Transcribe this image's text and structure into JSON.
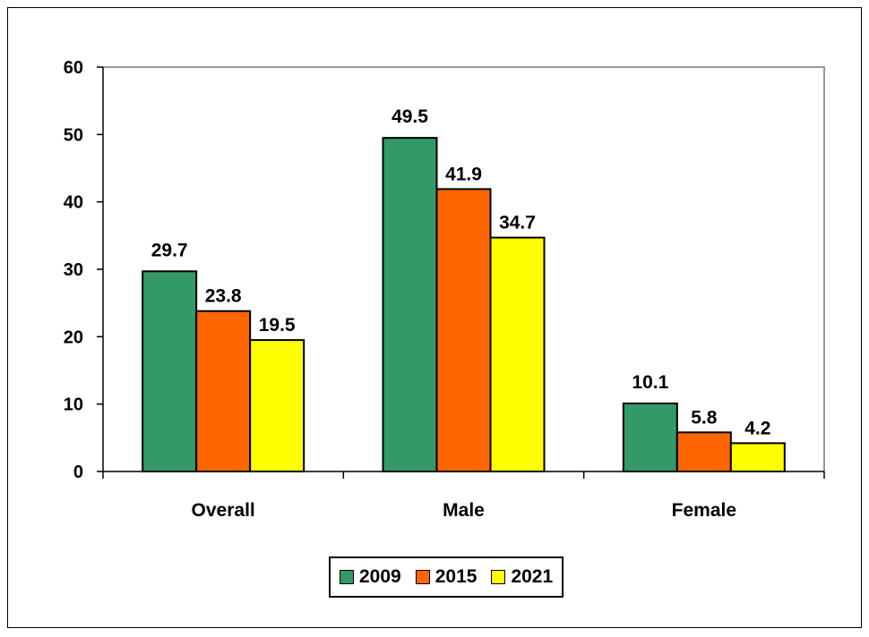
{
  "chart_data": {
    "type": "bar",
    "categories": [
      "Overall",
      "Male",
      "Female"
    ],
    "series": [
      {
        "name": "2009",
        "values": [
          29.7,
          49.5,
          10.1
        ],
        "color": "#339966"
      },
      {
        "name": "2015",
        "values": [
          23.8,
          41.9,
          5.8
        ],
        "color": "#ff6600"
      },
      {
        "name": "2021",
        "values": [
          19.5,
          34.7,
          4.2
        ],
        "color": "#ffff00"
      }
    ],
    "ylim": [
      0,
      60
    ],
    "yticks": [
      0,
      10,
      20,
      30,
      40,
      50,
      60
    ],
    "title": "",
    "xlabel": "",
    "ylabel": "",
    "grid": false,
    "legend_position": "bottom"
  }
}
